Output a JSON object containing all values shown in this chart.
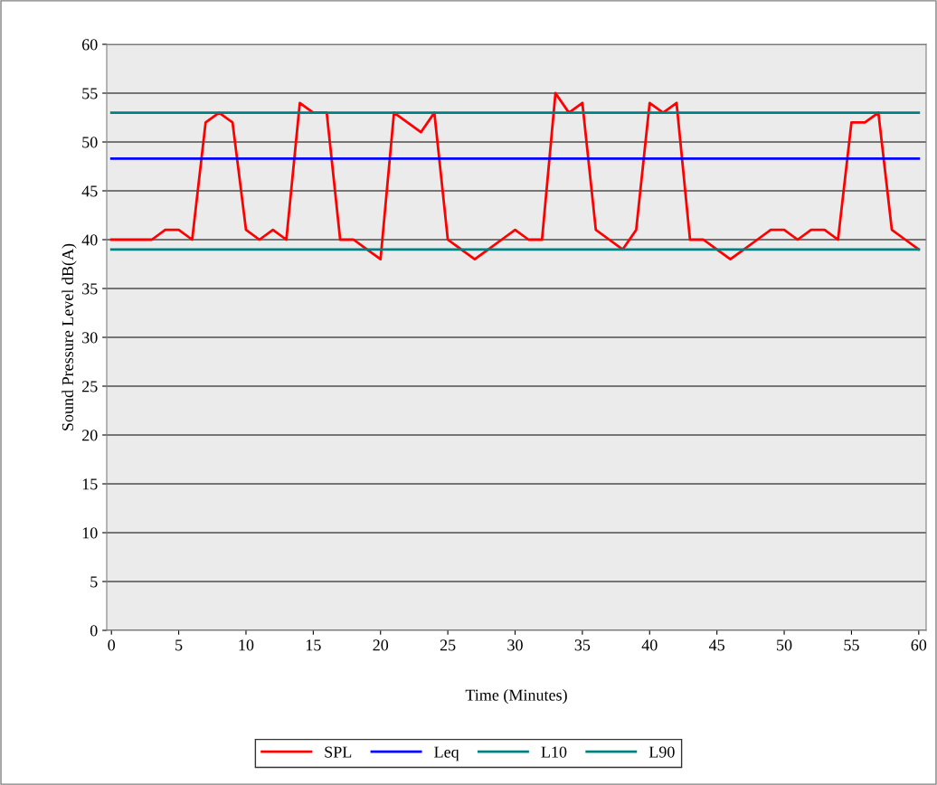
{
  "chart_data": {
    "type": "line",
    "xlabel": "Time (Minutes)",
    "ylabel": "Sound Pressure Level dB(A)",
    "categories": [
      "0",
      null,
      null,
      null,
      null,
      "5",
      null,
      null,
      null,
      null,
      "10",
      null,
      null,
      null,
      null,
      "15",
      null,
      null,
      null,
      null,
      "20",
      null,
      null,
      null,
      null,
      "25",
      null,
      null,
      null,
      null,
      "30",
      null,
      null,
      null,
      null,
      "35",
      null,
      null,
      null,
      null,
      "40",
      null,
      null,
      null,
      null,
      "45",
      null,
      null,
      null,
      null,
      "50",
      null,
      null,
      null,
      null,
      "55",
      null,
      null,
      null,
      null,
      "60"
    ],
    "series": [
      {
        "name": "SPL",
        "color": "#ff0000",
        "values": [
          40,
          40,
          40,
          40,
          41,
          41,
          40,
          52,
          53,
          52,
          41,
          40,
          41,
          40,
          54,
          53,
          53,
          40,
          40,
          39,
          38,
          53,
          52,
          51,
          53,
          40,
          39,
          38,
          39,
          40,
          41,
          40,
          40,
          55,
          53,
          54,
          41,
          40,
          39,
          41,
          54,
          53,
          54,
          40,
          40,
          39,
          38,
          39,
          40,
          41,
          41,
          40,
          41,
          41,
          40,
          52,
          52,
          53,
          41,
          40,
          39
        ]
      },
      {
        "name": "Leq",
        "color": "#0000ff",
        "values": [
          48.3,
          48.3,
          48.3,
          48.3,
          48.3,
          48.3,
          48.3,
          48.3,
          48.3,
          48.3,
          48.3,
          48.3,
          48.3,
          48.3,
          48.3,
          48.3,
          48.3,
          48.3,
          48.3,
          48.3,
          48.3,
          48.3,
          48.3,
          48.3,
          48.3,
          48.3,
          48.3,
          48.3,
          48.3,
          48.3,
          48.3,
          48.3,
          48.3,
          48.3,
          48.3,
          48.3,
          48.3,
          48.3,
          48.3,
          48.3,
          48.3,
          48.3,
          48.3,
          48.3,
          48.3,
          48.3,
          48.3,
          48.3,
          48.3,
          48.3,
          48.3,
          48.3,
          48.3,
          48.3,
          48.3,
          48.3,
          48.3,
          48.3,
          48.3,
          48.3,
          48.3
        ]
      },
      {
        "name": "L10",
        "color": "#008080",
        "values": [
          53,
          53,
          53,
          53,
          53,
          53,
          53,
          53,
          53,
          53,
          53,
          53,
          53,
          53,
          53,
          53,
          53,
          53,
          53,
          53,
          53,
          53,
          53,
          53,
          53,
          53,
          53,
          53,
          53,
          53,
          53,
          53,
          53,
          53,
          53,
          53,
          53,
          53,
          53,
          53,
          53,
          53,
          53,
          53,
          53,
          53,
          53,
          53,
          53,
          53,
          53,
          53,
          53,
          53,
          53,
          53,
          53,
          53,
          53,
          53,
          53
        ]
      },
      {
        "name": "L90",
        "color": "#008080",
        "values": [
          39,
          39,
          39,
          39,
          39,
          39,
          39,
          39,
          39,
          39,
          39,
          39,
          39,
          39,
          39,
          39,
          39,
          39,
          39,
          39,
          39,
          39,
          39,
          39,
          39,
          39,
          39,
          39,
          39,
          39,
          39,
          39,
          39,
          39,
          39,
          39,
          39,
          39,
          39,
          39,
          39,
          39,
          39,
          39,
          39,
          39,
          39,
          39,
          39,
          39,
          39,
          39,
          39,
          39,
          39,
          39,
          39,
          39,
          39,
          39,
          39
        ]
      }
    ],
    "ylim": [
      0,
      60
    ],
    "yticks": [
      0,
      5,
      10,
      15,
      20,
      25,
      30,
      35,
      40,
      45,
      50,
      55,
      60
    ],
    "grid": "y",
    "legend": "bottom",
    "marker": "none",
    "line_style": "solid"
  }
}
